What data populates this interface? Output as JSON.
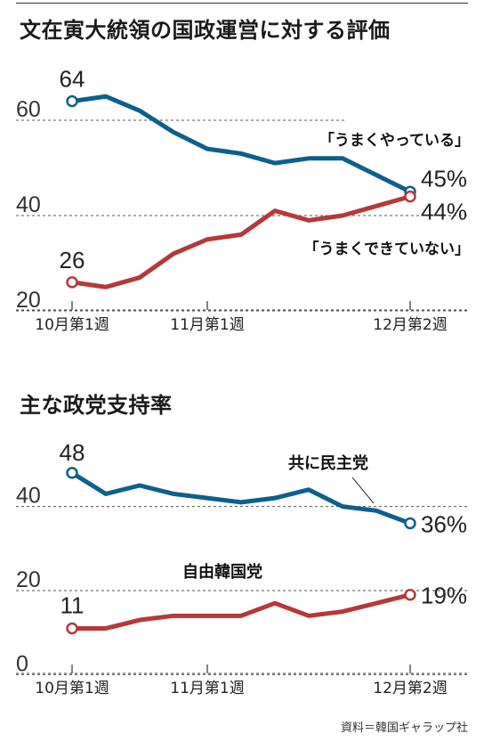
{
  "source_note": "資料＝韓国ギャラップ社",
  "chart_data": [
    {
      "type": "line",
      "title": "文在寅大統領の国政運営に対する評価",
      "y_ticks": [
        "20",
        "40",
        "60"
      ],
      "ylim": [
        17,
        68
      ],
      "x_ticks": [
        {
          "label": "10月第1週",
          "index": 0
        },
        {
          "label": "11月第1週",
          "index": 4
        },
        {
          "label": "12月第2週",
          "index": 10
        }
      ],
      "series": [
        {
          "name": "「うまくやっている」",
          "color": "#0d5f8c",
          "values": [
            64,
            65,
            62,
            57.5,
            54,
            53,
            51,
            52,
            52,
            48.5,
            45
          ],
          "start_label": "64",
          "end_label": "45%"
        },
        {
          "name": "「うまくできていない」",
          "color": "#b5383a",
          "values": [
            26,
            25,
            27,
            32,
            35,
            36,
            41,
            39,
            40,
            42,
            44
          ],
          "start_label": "26",
          "end_label": "44%"
        }
      ]
    },
    {
      "type": "line",
      "title": "主な政党支持率",
      "y_ticks": [
        "0",
        "20",
        "40"
      ],
      "ylim": [
        -2,
        54
      ],
      "x_ticks": [
        {
          "label": "10月第1週",
          "index": 0
        },
        {
          "label": "11月第1週",
          "index": 4
        },
        {
          "label": "12月第2週",
          "index": 10
        }
      ],
      "series": [
        {
          "name": "共に民主党",
          "color": "#0d5f8c",
          "values": [
            48,
            43,
            45,
            43,
            42,
            41,
            42,
            44,
            40,
            39,
            36
          ],
          "start_label": "48",
          "end_label": "36%"
        },
        {
          "name": "自由韓国党",
          "color": "#b5383a",
          "values": [
            11,
            11,
            13,
            14,
            14,
            14,
            17,
            14,
            15,
            17,
            19
          ],
          "start_label": "11",
          "end_label": "19%"
        }
      ]
    }
  ]
}
